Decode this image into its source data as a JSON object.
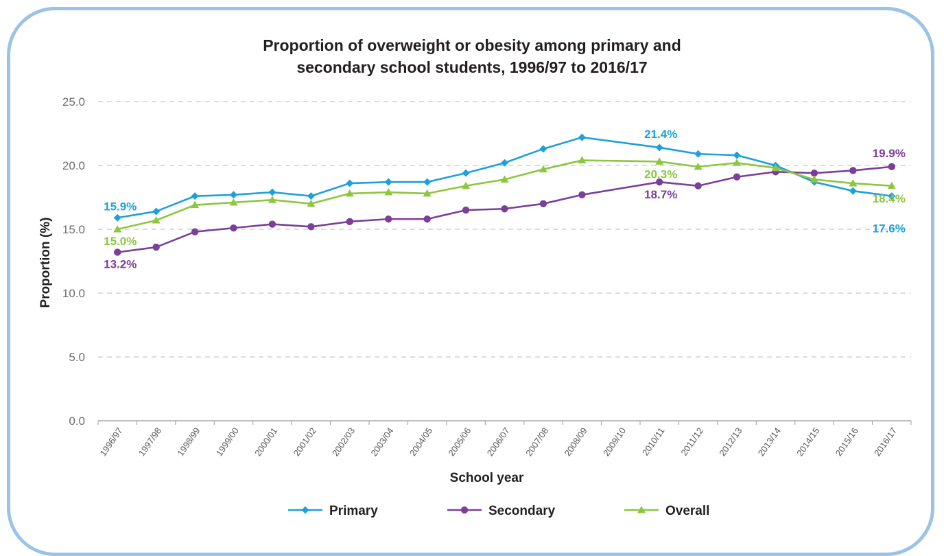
{
  "chart_data": {
    "type": "line",
    "title_lines": [
      "Proportion of overweight or obesity among primary and",
      "secondary school students, 1996/97 to 2016/17"
    ],
    "xlabel": "School year",
    "ylabel": "Proportion (%)",
    "ylim": [
      0,
      25
    ],
    "yticks": [
      "0.0",
      "5.0",
      "10.0",
      "15.0",
      "20.0",
      "25.0"
    ],
    "grid": "horizontal dashed",
    "legend_position": "bottom",
    "categories": [
      "1996/97",
      "1997/98",
      "1998/99",
      "1999/00",
      "2000/01",
      "2001/02",
      "2002/03",
      "2003/04",
      "2004/05",
      "2005/06",
      "2006/07",
      "2007/08",
      "2008/09",
      "2009/10",
      "2010/11",
      "2011/12",
      "2012/13",
      "2013/14",
      "2014/15",
      "2015/16",
      "2016/17"
    ],
    "series": [
      {
        "name": "Primary",
        "color": "#1ea0dc",
        "marker": "diamond",
        "values": [
          15.9,
          16.4,
          17.6,
          17.7,
          17.9,
          17.6,
          18.6,
          18.7,
          18.7,
          19.4,
          20.2,
          21.3,
          22.2,
          null,
          21.4,
          20.9,
          20.8,
          20.0,
          18.7,
          18.0,
          17.6
        ]
      },
      {
        "name": "Secondary",
        "color": "#7b3f98",
        "marker": "circle",
        "values": [
          13.2,
          13.6,
          14.8,
          15.1,
          15.4,
          15.2,
          15.6,
          15.8,
          15.8,
          16.5,
          16.6,
          17.0,
          17.7,
          null,
          18.7,
          18.4,
          19.1,
          19.5,
          19.4,
          19.6,
          19.9
        ]
      },
      {
        "name": "Overall",
        "color": "#8dc63f",
        "marker": "triangle",
        "values": [
          15.0,
          15.7,
          16.9,
          17.1,
          17.3,
          17.0,
          17.8,
          17.9,
          17.8,
          18.4,
          18.9,
          19.7,
          20.4,
          null,
          20.3,
          19.9,
          20.2,
          19.8,
          18.9,
          18.6,
          18.4
        ]
      }
    ],
    "annotations": [
      {
        "text": "15.9%",
        "series": "Primary",
        "category": "1996/97"
      },
      {
        "text": "15.0%",
        "series": "Overall",
        "category": "1996/97"
      },
      {
        "text": "13.2%",
        "series": "Secondary",
        "category": "1996/97"
      },
      {
        "text": "21.4%",
        "series": "Primary",
        "category": "2010/11"
      },
      {
        "text": "20.3%",
        "series": "Overall",
        "category": "2010/11"
      },
      {
        "text": "18.7%",
        "series": "Secondary",
        "category": "2010/11"
      },
      {
        "text": "19.9%",
        "series": "Secondary",
        "category": "2016/17"
      },
      {
        "text": "18.4%",
        "series": "Overall",
        "category": "2016/17"
      },
      {
        "text": "17.6%",
        "series": "Primary",
        "category": "2016/17"
      }
    ]
  }
}
